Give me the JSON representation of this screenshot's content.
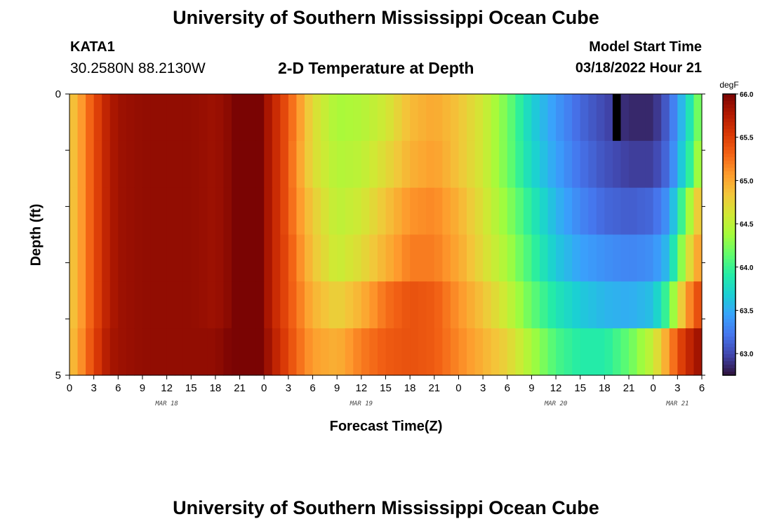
{
  "header": {
    "title": "University of Southern Mississippi Ocean Cube",
    "station": "KATA1",
    "coords": "30.2580N  88.2130W",
    "subtitle": "2-D Temperature at Depth",
    "model_start_label": "Model Start Time",
    "model_start_value": "03/18/2022 Hour 21",
    "footer_title": "University of Southern Mississippi Ocean Cube"
  },
  "chart_data": {
    "type": "heatmap",
    "xlabel": "Forecast Time(Z)",
    "ylabel": "Depth (ft)",
    "x_range_hours": [
      0,
      78
    ],
    "y_range": [
      0,
      5
    ],
    "y_tick_labels": [
      "0",
      "5"
    ],
    "x_tick_labels": [
      "0",
      "3",
      "6",
      "9",
      "12",
      "15",
      "18",
      "21",
      "0",
      "3",
      "6",
      "9",
      "12",
      "15",
      "18",
      "21",
      "0",
      "3",
      "6",
      "9",
      "12",
      "15",
      "18",
      "21",
      "0",
      "3",
      "6"
    ],
    "day_labels": [
      {
        "label": "MAR 18",
        "hour": 12
      },
      {
        "label": "MAR 19",
        "hour": 36
      },
      {
        "label": "MAR 20",
        "hour": 60
      },
      {
        "label": "MAR 21",
        "hour": 75
      }
    ],
    "depth_levels": [
      0,
      1,
      2,
      3,
      4,
      5
    ],
    "colorbar": {
      "unit": "degF",
      "min": 62.75,
      "max": 66.0,
      "tick_labels": [
        "63.0",
        "63.5",
        "64.0",
        "64.5",
        "65.0",
        "65.5",
        "66.0"
      ],
      "tick_values": [
        63.0,
        63.5,
        64.0,
        64.5,
        65.0,
        65.5,
        66.0
      ],
      "palette": [
        "#30123b",
        "#4145ab",
        "#4675ed",
        "#39a2fc",
        "#1bcfd4",
        "#24eca6",
        "#61fc6c",
        "#a4fc3b",
        "#d1e834",
        "#f3c63a",
        "#fe9b2d",
        "#f36315",
        "#d93806",
        "#b11901",
        "#7a0403"
      ]
    },
    "time_keys": [
      0,
      1,
      2,
      3,
      4,
      5,
      6,
      9,
      12,
      15,
      18,
      20,
      21,
      22,
      23,
      24,
      25,
      26,
      27,
      28,
      30,
      33,
      36,
      39,
      42,
      45,
      48,
      51,
      54,
      57,
      60,
      63,
      66,
      69,
      72,
      74,
      75,
      76,
      77,
      78
    ],
    "rows": [
      {
        "depth": 0,
        "values": [
          64.8,
          64.95,
          65.2,
          65.4,
          65.6,
          65.75,
          65.85,
          65.9,
          65.9,
          65.9,
          65.85,
          65.95,
          66.1,
          66.2,
          66.15,
          65.9,
          65.7,
          65.55,
          65.35,
          65.15,
          64.7,
          64.4,
          64.45,
          64.6,
          64.9,
          65.0,
          64.85,
          64.6,
          64.2,
          63.7,
          63.4,
          63.15,
          63.0,
          62.85,
          62.85,
          63.15,
          63.4,
          63.7,
          64.0,
          64.4
        ]
      },
      {
        "depth": 1,
        "values": [
          64.8,
          64.95,
          65.2,
          65.4,
          65.6,
          65.75,
          65.85,
          65.9,
          65.9,
          65.9,
          65.85,
          65.95,
          66.1,
          66.2,
          66.15,
          65.9,
          65.7,
          65.55,
          65.35,
          65.1,
          64.7,
          64.45,
          64.5,
          64.7,
          64.95,
          65.05,
          64.85,
          64.6,
          64.2,
          63.75,
          63.45,
          63.2,
          63.05,
          62.95,
          62.95,
          63.2,
          63.5,
          63.8,
          64.1,
          64.6
        ]
      },
      {
        "depth": 2,
        "values": [
          64.8,
          64.95,
          65.2,
          65.4,
          65.6,
          65.75,
          65.85,
          65.9,
          65.9,
          65.9,
          65.85,
          65.95,
          66.1,
          66.2,
          66.15,
          65.9,
          65.7,
          65.55,
          65.35,
          65.15,
          64.8,
          64.5,
          64.6,
          64.85,
          65.1,
          65.15,
          64.95,
          64.65,
          64.3,
          63.9,
          63.55,
          63.3,
          63.15,
          63.1,
          63.15,
          63.4,
          63.8,
          64.2,
          64.6,
          65.0
        ]
      },
      {
        "depth": 3,
        "values": [
          64.8,
          64.95,
          65.2,
          65.4,
          65.6,
          65.75,
          65.85,
          65.9,
          65.9,
          65.9,
          65.85,
          65.95,
          66.1,
          66.2,
          66.15,
          65.9,
          65.7,
          65.55,
          65.4,
          65.2,
          64.85,
          64.55,
          64.7,
          64.95,
          65.2,
          65.2,
          65.0,
          64.7,
          64.4,
          64.0,
          63.65,
          63.45,
          63.35,
          63.3,
          63.35,
          63.6,
          64.1,
          64.5,
          64.9,
          65.1
        ]
      },
      {
        "depth": 4,
        "values": [
          64.8,
          64.95,
          65.2,
          65.4,
          65.6,
          65.75,
          65.85,
          65.9,
          65.9,
          65.9,
          65.85,
          65.95,
          66.1,
          66.2,
          66.15,
          65.9,
          65.7,
          65.55,
          65.4,
          65.25,
          64.95,
          64.75,
          64.95,
          65.25,
          65.4,
          65.35,
          65.1,
          64.85,
          64.55,
          64.15,
          63.85,
          63.65,
          63.55,
          63.5,
          63.6,
          64.1,
          64.6,
          65.0,
          65.3,
          65.5
        ]
      },
      {
        "depth": 5,
        "values": [
          64.85,
          65.0,
          65.25,
          65.45,
          65.65,
          65.8,
          65.85,
          65.9,
          65.9,
          65.9,
          65.9,
          66.0,
          66.2,
          66.25,
          66.2,
          65.95,
          65.75,
          65.6,
          65.45,
          65.3,
          65.05,
          64.95,
          65.2,
          65.35,
          65.4,
          65.35,
          65.15,
          64.95,
          64.75,
          64.4,
          64.05,
          63.9,
          63.9,
          64.15,
          64.55,
          65.1,
          65.4,
          65.6,
          65.75,
          65.9
        ]
      }
    ],
    "missing_cells": [
      {
        "depth": 0,
        "hour": 67
      }
    ]
  }
}
